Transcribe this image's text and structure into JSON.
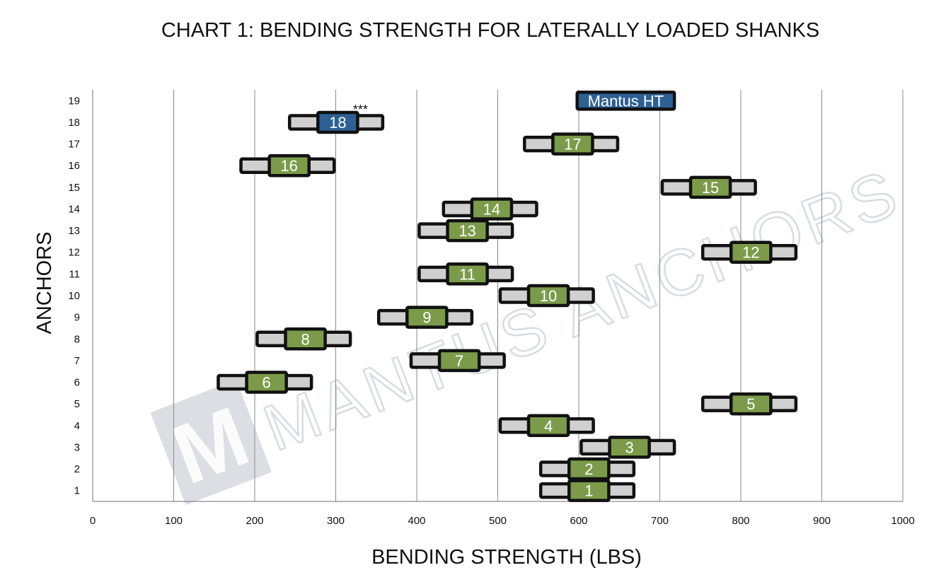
{
  "chart_data": {
    "type": "bar",
    "title": "CHART 1: BENDING STRENGTH FOR LATERALLY LOADED SHANKS",
    "xlabel": "BENDING STRENGTH (LBS)",
    "ylabel": "ANCHORS",
    "xlim": [
      0,
      1000
    ],
    "ylim": [
      0.5,
      19.5
    ],
    "x_ticks": [
      "0",
      "100",
      "200",
      "300",
      "400",
      "500",
      "600",
      "700",
      "800",
      "900",
      "1000"
    ],
    "y_ticks": [
      "1",
      "2",
      "3",
      "4",
      "5",
      "6",
      "7",
      "8",
      "9",
      "10",
      "11",
      "12",
      "13",
      "14",
      "15",
      "16",
      "17",
      "18",
      "19"
    ],
    "grid": "vertical",
    "watermark": "MANTUS ANCHORS",
    "highlight_label": "Mantus HT",
    "highlight_range": [
      598,
      718
    ],
    "highlight_color": "#2e6095",
    "annotation": "***",
    "annotation_anchor": "18",
    "colors": {
      "center": "#7b9b4a",
      "highlight": "#2e6095",
      "range": "#d0d0d0",
      "outline": "#111111"
    },
    "series": [
      {
        "label": "1",
        "range": [
          553,
          668
        ],
        "center": [
          588,
          637
        ]
      },
      {
        "label": "2",
        "range": [
          553,
          668
        ],
        "center": [
          588,
          637
        ]
      },
      {
        "label": "3",
        "range": [
          603,
          718
        ],
        "center": [
          638,
          687
        ]
      },
      {
        "label": "4",
        "range": [
          503,
          618
        ],
        "center": [
          538,
          587
        ]
      },
      {
        "label": "5",
        "range": [
          753,
          868
        ],
        "center": [
          788,
          837
        ]
      },
      {
        "label": "6",
        "range": [
          155,
          270
        ],
        "center": [
          190,
          239
        ]
      },
      {
        "label": "7",
        "range": [
          393,
          508
        ],
        "center": [
          428,
          477
        ]
      },
      {
        "label": "8",
        "range": [
          203,
          318
        ],
        "center": [
          238,
          287
        ]
      },
      {
        "label": "9",
        "range": [
          353,
          468
        ],
        "center": [
          388,
          437
        ]
      },
      {
        "label": "10",
        "range": [
          503,
          618
        ],
        "center": [
          538,
          587
        ]
      },
      {
        "label": "11",
        "range": [
          403,
          518
        ],
        "center": [
          438,
          487
        ]
      },
      {
        "label": "12",
        "range": [
          753,
          868
        ],
        "center": [
          788,
          837
        ]
      },
      {
        "label": "13",
        "range": [
          403,
          518
        ],
        "center": [
          438,
          487
        ]
      },
      {
        "label": "14",
        "range": [
          433,
          548
        ],
        "center": [
          468,
          517
        ]
      },
      {
        "label": "15",
        "range": [
          703,
          818
        ],
        "center": [
          738,
          787
        ]
      },
      {
        "label": "16",
        "range": [
          183,
          298
        ],
        "center": [
          218,
          267
        ]
      },
      {
        "label": "17",
        "range": [
          533,
          648
        ],
        "center": [
          568,
          617
        ]
      },
      {
        "label": "18",
        "range": [
          243,
          358
        ],
        "center": [
          278,
          327
        ],
        "highlight": true
      }
    ]
  }
}
